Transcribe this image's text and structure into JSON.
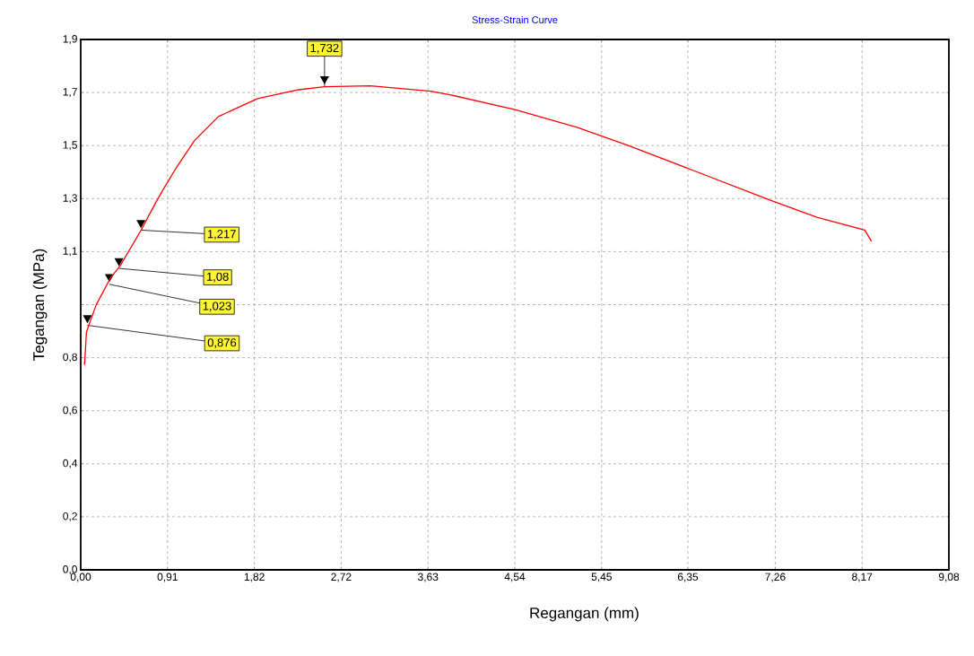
{
  "chart_data": {
    "type": "line",
    "title": "Stress-Strain Curve",
    "xlabel": "Regangan (mm)",
    "ylabel": "Tegangan (MPa)",
    "series": [
      {
        "color": "#ff0000",
        "x": [
          0.04,
          0.06,
          0.16,
          0.31,
          0.41,
          0.63,
          0.78,
          0.86,
          1.0,
          1.19,
          1.44,
          1.85,
          2.28,
          2.55,
          3.03,
          3.66,
          3.85,
          4.55,
          5.19,
          5.72,
          6.39,
          7.2,
          7.7,
          8.2,
          8.27
        ],
        "values": [
          0.734,
          0.852,
          0.948,
          1.045,
          1.088,
          1.216,
          1.313,
          1.361,
          1.441,
          1.538,
          1.624,
          1.688,
          1.72,
          1.731,
          1.734,
          1.715,
          1.703,
          1.648,
          1.585,
          1.521,
          1.433,
          1.326,
          1.263,
          1.217,
          1.177
        ]
      }
    ],
    "annotations": [
      {
        "text": "0,876",
        "x": 0.07,
        "y": 0.876
      },
      {
        "text": "1,023",
        "x": 0.3,
        "y": 1.023
      },
      {
        "text": "1,08",
        "x": 0.4,
        "y": 1.08
      },
      {
        "text": "1,217",
        "x": 0.63,
        "y": 1.217
      },
      {
        "text": "1,732",
        "x": 2.55,
        "y": 1.732
      }
    ],
    "xlim": [
      0,
      9.08
    ],
    "xticks": [
      {
        "value": 0,
        "label": "0,00"
      },
      {
        "value": 0.908,
        "label": "0,91"
      },
      {
        "value": 1.816,
        "label": "1,82"
      },
      {
        "value": 2.724,
        "label": "2,72"
      },
      {
        "value": 3.632,
        "label": "3,63"
      },
      {
        "value": 4.54,
        "label": "4,54"
      },
      {
        "value": 5.448,
        "label": "5,45"
      },
      {
        "value": 6.35,
        "label": "6,35"
      },
      {
        "value": 7.264,
        "label": "7,26"
      },
      {
        "value": 8.172,
        "label": "8,17"
      },
      {
        "value": 9.08,
        "label": "9,08"
      }
    ],
    "ylim": [
      0,
      1.9
    ],
    "yticks": [
      {
        "value": 0,
        "label": "0,0"
      },
      {
        "value": 0.19,
        "label": "0,2"
      },
      {
        "value": 0.38,
        "label": "0,4"
      },
      {
        "value": 0.57,
        "label": "0,6"
      },
      {
        "value": 0.76,
        "label": "0,8"
      },
      {
        "value": 0.95,
        "label": null
      },
      {
        "value": 1.14,
        "label": "1,1"
      },
      {
        "value": 1.33,
        "label": "1,3"
      },
      {
        "value": 1.52,
        "label": "1,5"
      },
      {
        "value": 1.71,
        "label": "1,7"
      },
      {
        "value": 1.9,
        "label": "1,9"
      }
    ],
    "grid": true,
    "legend": false,
    "marker": "none",
    "line_style": "solid"
  }
}
